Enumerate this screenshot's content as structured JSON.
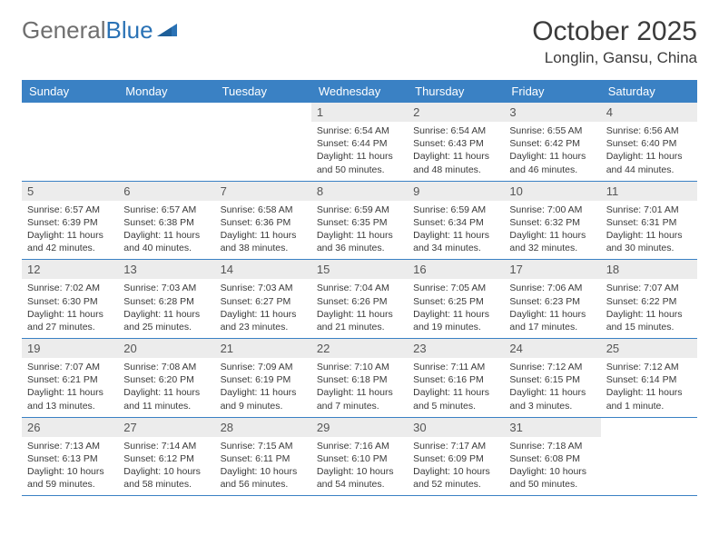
{
  "logo": {
    "text_gray": "General",
    "text_blue": "Blue"
  },
  "title": "October 2025",
  "location": "Longlin, Gansu, China",
  "colors": {
    "header_bg": "#3a81c4",
    "header_text": "#ffffff",
    "daynum_bg": "#ececec",
    "daynum_text": "#555555",
    "border": "#3a81c4",
    "logo_gray": "#6f6f6f",
    "logo_blue": "#2a72b5",
    "text": "#3a3a3a"
  },
  "day_headers": [
    "Sunday",
    "Monday",
    "Tuesday",
    "Wednesday",
    "Thursday",
    "Friday",
    "Saturday"
  ],
  "weeks": [
    [
      null,
      null,
      null,
      {
        "n": "1",
        "sr": "6:54 AM",
        "ss": "6:44 PM",
        "dl": "11 hours and 50 minutes."
      },
      {
        "n": "2",
        "sr": "6:54 AM",
        "ss": "6:43 PM",
        "dl": "11 hours and 48 minutes."
      },
      {
        "n": "3",
        "sr": "6:55 AM",
        "ss": "6:42 PM",
        "dl": "11 hours and 46 minutes."
      },
      {
        "n": "4",
        "sr": "6:56 AM",
        "ss": "6:40 PM",
        "dl": "11 hours and 44 minutes."
      }
    ],
    [
      {
        "n": "5",
        "sr": "6:57 AM",
        "ss": "6:39 PM",
        "dl": "11 hours and 42 minutes."
      },
      {
        "n": "6",
        "sr": "6:57 AM",
        "ss": "6:38 PM",
        "dl": "11 hours and 40 minutes."
      },
      {
        "n": "7",
        "sr": "6:58 AM",
        "ss": "6:36 PM",
        "dl": "11 hours and 38 minutes."
      },
      {
        "n": "8",
        "sr": "6:59 AM",
        "ss": "6:35 PM",
        "dl": "11 hours and 36 minutes."
      },
      {
        "n": "9",
        "sr": "6:59 AM",
        "ss": "6:34 PM",
        "dl": "11 hours and 34 minutes."
      },
      {
        "n": "10",
        "sr": "7:00 AM",
        "ss": "6:32 PM",
        "dl": "11 hours and 32 minutes."
      },
      {
        "n": "11",
        "sr": "7:01 AM",
        "ss": "6:31 PM",
        "dl": "11 hours and 30 minutes."
      }
    ],
    [
      {
        "n": "12",
        "sr": "7:02 AM",
        "ss": "6:30 PM",
        "dl": "11 hours and 27 minutes."
      },
      {
        "n": "13",
        "sr": "7:03 AM",
        "ss": "6:28 PM",
        "dl": "11 hours and 25 minutes."
      },
      {
        "n": "14",
        "sr": "7:03 AM",
        "ss": "6:27 PM",
        "dl": "11 hours and 23 minutes."
      },
      {
        "n": "15",
        "sr": "7:04 AM",
        "ss": "6:26 PM",
        "dl": "11 hours and 21 minutes."
      },
      {
        "n": "16",
        "sr": "7:05 AM",
        "ss": "6:25 PM",
        "dl": "11 hours and 19 minutes."
      },
      {
        "n": "17",
        "sr": "7:06 AM",
        "ss": "6:23 PM",
        "dl": "11 hours and 17 minutes."
      },
      {
        "n": "18",
        "sr": "7:07 AM",
        "ss": "6:22 PM",
        "dl": "11 hours and 15 minutes."
      }
    ],
    [
      {
        "n": "19",
        "sr": "7:07 AM",
        "ss": "6:21 PM",
        "dl": "11 hours and 13 minutes."
      },
      {
        "n": "20",
        "sr": "7:08 AM",
        "ss": "6:20 PM",
        "dl": "11 hours and 11 minutes."
      },
      {
        "n": "21",
        "sr": "7:09 AM",
        "ss": "6:19 PM",
        "dl": "11 hours and 9 minutes."
      },
      {
        "n": "22",
        "sr": "7:10 AM",
        "ss": "6:18 PM",
        "dl": "11 hours and 7 minutes."
      },
      {
        "n": "23",
        "sr": "7:11 AM",
        "ss": "6:16 PM",
        "dl": "11 hours and 5 minutes."
      },
      {
        "n": "24",
        "sr": "7:12 AM",
        "ss": "6:15 PM",
        "dl": "11 hours and 3 minutes."
      },
      {
        "n": "25",
        "sr": "7:12 AM",
        "ss": "6:14 PM",
        "dl": "11 hours and 1 minute."
      }
    ],
    [
      {
        "n": "26",
        "sr": "7:13 AM",
        "ss": "6:13 PM",
        "dl": "10 hours and 59 minutes."
      },
      {
        "n": "27",
        "sr": "7:14 AM",
        "ss": "6:12 PM",
        "dl": "10 hours and 58 minutes."
      },
      {
        "n": "28",
        "sr": "7:15 AM",
        "ss": "6:11 PM",
        "dl": "10 hours and 56 minutes."
      },
      {
        "n": "29",
        "sr": "7:16 AM",
        "ss": "6:10 PM",
        "dl": "10 hours and 54 minutes."
      },
      {
        "n": "30",
        "sr": "7:17 AM",
        "ss": "6:09 PM",
        "dl": "10 hours and 52 minutes."
      },
      {
        "n": "31",
        "sr": "7:18 AM",
        "ss": "6:08 PM",
        "dl": "10 hours and 50 minutes."
      },
      null
    ]
  ],
  "labels": {
    "sunrise": "Sunrise:",
    "sunset": "Sunset:",
    "daylight": "Daylight:"
  }
}
